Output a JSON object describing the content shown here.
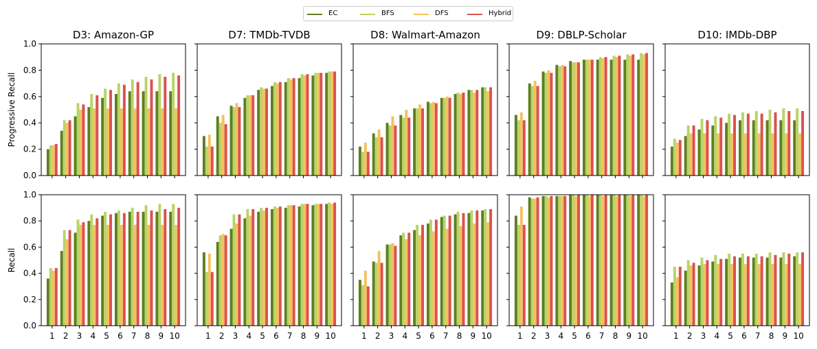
{
  "legend": {
    "items": [
      {
        "label": "EC",
        "color": "#5f7f1f"
      },
      {
        "label": "BFS",
        "color": "#b8d468"
      },
      {
        "label": "DFS",
        "color": "#f5c060"
      },
      {
        "label": "Hybrid",
        "color": "#d9534f"
      }
    ]
  },
  "row_labels": [
    "Progressive Recall",
    "Recall"
  ],
  "chart_data": [
    {
      "type": "bar",
      "title": "D3: Amazon-GP",
      "ylabel": "Progressive Recall",
      "ylim": [
        0,
        1.0
      ],
      "categories": [
        "1",
        "2",
        "3",
        "4",
        "5",
        "6",
        "7",
        "8",
        "9",
        "10"
      ],
      "series": [
        {
          "name": "EC",
          "values": [
            0.2,
            0.34,
            0.45,
            0.52,
            0.59,
            0.62,
            0.64,
            0.64,
            0.64,
            0.64
          ]
        },
        {
          "name": "BFS",
          "values": [
            0.23,
            0.42,
            0.55,
            0.62,
            0.66,
            0.7,
            0.73,
            0.75,
            0.77,
            0.78
          ]
        },
        {
          "name": "DFS",
          "values": [
            0.23,
            0.4,
            0.5,
            0.51,
            0.51,
            0.51,
            0.51,
            0.51,
            0.51,
            0.51
          ]
        },
        {
          "name": "Hybrid",
          "values": [
            0.24,
            0.42,
            0.54,
            0.61,
            0.65,
            0.69,
            0.71,
            0.73,
            0.75,
            0.76
          ]
        }
      ]
    },
    {
      "type": "bar",
      "title": "D7: TMDb-TVDB",
      "ylabel": "",
      "ylim": [
        0,
        1.0
      ],
      "categories": [
        "1",
        "2",
        "3",
        "4",
        "5",
        "6",
        "7",
        "8",
        "9",
        "10"
      ],
      "series": [
        {
          "name": "EC",
          "values": [
            0.3,
            0.45,
            0.53,
            0.59,
            0.65,
            0.68,
            0.71,
            0.74,
            0.76,
            0.78
          ]
        },
        {
          "name": "BFS",
          "values": [
            0.22,
            0.4,
            0.52,
            0.61,
            0.67,
            0.71,
            0.74,
            0.77,
            0.78,
            0.79
          ]
        },
        {
          "name": "DFS",
          "values": [
            0.31,
            0.46,
            0.55,
            0.61,
            0.66,
            0.7,
            0.73,
            0.76,
            0.78,
            0.79
          ]
        },
        {
          "name": "Hybrid",
          "values": [
            0.22,
            0.39,
            0.52,
            0.61,
            0.66,
            0.71,
            0.74,
            0.77,
            0.78,
            0.79
          ]
        }
      ]
    },
    {
      "type": "bar",
      "title": "D8: Walmart-Amazon",
      "ylabel": "",
      "ylim": [
        0,
        1.0
      ],
      "categories": [
        "1",
        "2",
        "3",
        "4",
        "5",
        "6",
        "7",
        "8",
        "9",
        "10"
      ],
      "series": [
        {
          "name": "EC",
          "values": [
            0.22,
            0.32,
            0.4,
            0.46,
            0.51,
            0.56,
            0.59,
            0.62,
            0.65,
            0.67
          ]
        },
        {
          "name": "BFS",
          "values": [
            0.18,
            0.29,
            0.38,
            0.44,
            0.51,
            0.55,
            0.59,
            0.63,
            0.65,
            0.67
          ]
        },
        {
          "name": "DFS",
          "values": [
            0.25,
            0.35,
            0.45,
            0.5,
            0.54,
            0.56,
            0.6,
            0.62,
            0.63,
            0.64
          ]
        },
        {
          "name": "Hybrid",
          "values": [
            0.18,
            0.29,
            0.38,
            0.44,
            0.51,
            0.55,
            0.59,
            0.63,
            0.65,
            0.67
          ]
        }
      ]
    },
    {
      "type": "bar",
      "title": "D9: DBLP-Scholar",
      "ylabel": "",
      "ylim": [
        0,
        1.0
      ],
      "categories": [
        "1",
        "2",
        "3",
        "4",
        "5",
        "6",
        "7",
        "8",
        "9",
        "10"
      ],
      "series": [
        {
          "name": "EC",
          "values": [
            0.46,
            0.7,
            0.79,
            0.84,
            0.87,
            0.88,
            0.88,
            0.88,
            0.88,
            0.88
          ]
        },
        {
          "name": "BFS",
          "values": [
            0.42,
            0.68,
            0.78,
            0.83,
            0.86,
            0.88,
            0.9,
            0.91,
            0.92,
            0.93
          ]
        },
        {
          "name": "DFS",
          "values": [
            0.48,
            0.72,
            0.8,
            0.84,
            0.86,
            0.88,
            0.89,
            0.9,
            0.91,
            0.92
          ]
        },
        {
          "name": "Hybrid",
          "values": [
            0.42,
            0.68,
            0.78,
            0.83,
            0.86,
            0.88,
            0.9,
            0.91,
            0.92,
            0.93
          ]
        }
      ]
    },
    {
      "type": "bar",
      "title": "D10: IMDb-DBP",
      "ylabel": "",
      "ylim": [
        0,
        1.0
      ],
      "categories": [
        "1",
        "2",
        "3",
        "4",
        "5",
        "6",
        "7",
        "8",
        "9",
        "10"
      ],
      "series": [
        {
          "name": "EC",
          "values": [
            0.22,
            0.3,
            0.35,
            0.38,
            0.4,
            0.42,
            0.42,
            0.42,
            0.42,
            0.42
          ]
        },
        {
          "name": "BFS",
          "values": [
            0.28,
            0.38,
            0.43,
            0.45,
            0.47,
            0.48,
            0.49,
            0.5,
            0.51,
            0.51
          ]
        },
        {
          "name": "DFS",
          "values": [
            0.25,
            0.32,
            0.32,
            0.32,
            0.32,
            0.32,
            0.32,
            0.32,
            0.32,
            0.32
          ]
        },
        {
          "name": "Hybrid",
          "values": [
            0.27,
            0.38,
            0.42,
            0.44,
            0.46,
            0.47,
            0.47,
            0.48,
            0.49,
            0.49
          ]
        }
      ]
    },
    {
      "type": "bar",
      "title": "",
      "ylabel": "Recall",
      "ylim": [
        0,
        1.0
      ],
      "categories": [
        "1",
        "2",
        "3",
        "4",
        "5",
        "6",
        "7",
        "8",
        "9",
        "10"
      ],
      "series": [
        {
          "name": "EC",
          "values": [
            0.36,
            0.57,
            0.71,
            0.8,
            0.84,
            0.86,
            0.87,
            0.87,
            0.87,
            0.87
          ]
        },
        {
          "name": "BFS",
          "values": [
            0.44,
            0.73,
            0.81,
            0.85,
            0.87,
            0.88,
            0.9,
            0.92,
            0.93,
            0.93
          ]
        },
        {
          "name": "DFS",
          "values": [
            0.42,
            0.66,
            0.77,
            0.77,
            0.77,
            0.77,
            0.77,
            0.77,
            0.77,
            0.77
          ]
        },
        {
          "name": "Hybrid",
          "values": [
            0.44,
            0.73,
            0.79,
            0.82,
            0.85,
            0.86,
            0.87,
            0.88,
            0.89,
            0.9
          ]
        }
      ]
    },
    {
      "type": "bar",
      "title": "",
      "ylabel": "",
      "ylim": [
        0,
        1.0
      ],
      "categories": [
        "1",
        "2",
        "3",
        "4",
        "5",
        "6",
        "7",
        "8",
        "9",
        "10"
      ],
      "series": [
        {
          "name": "EC",
          "values": [
            0.56,
            0.64,
            0.74,
            0.82,
            0.87,
            0.89,
            0.9,
            0.91,
            0.92,
            0.93
          ]
        },
        {
          "name": "BFS",
          "values": [
            0.41,
            0.69,
            0.85,
            0.89,
            0.9,
            0.91,
            0.92,
            0.93,
            0.93,
            0.94
          ]
        },
        {
          "name": "DFS",
          "values": [
            0.55,
            0.7,
            0.78,
            0.84,
            0.88,
            0.9,
            0.92,
            0.93,
            0.93,
            0.93
          ]
        },
        {
          "name": "Hybrid",
          "values": [
            0.41,
            0.69,
            0.85,
            0.89,
            0.9,
            0.91,
            0.92,
            0.93,
            0.93,
            0.94
          ]
        }
      ]
    },
    {
      "type": "bar",
      "title": "",
      "ylabel": "",
      "ylim": [
        0,
        1.0
      ],
      "categories": [
        "1",
        "2",
        "3",
        "4",
        "5",
        "6",
        "7",
        "8",
        "9",
        "10"
      ],
      "series": [
        {
          "name": "EC",
          "values": [
            0.35,
            0.49,
            0.62,
            0.69,
            0.73,
            0.78,
            0.83,
            0.85,
            0.86,
            0.88
          ]
        },
        {
          "name": "BFS",
          "values": [
            0.31,
            0.48,
            0.62,
            0.71,
            0.77,
            0.81,
            0.84,
            0.87,
            0.88,
            0.89
          ]
        },
        {
          "name": "DFS",
          "values": [
            0.42,
            0.57,
            0.63,
            0.66,
            0.69,
            0.72,
            0.74,
            0.76,
            0.78,
            0.79
          ]
        },
        {
          "name": "Hybrid",
          "values": [
            0.3,
            0.48,
            0.61,
            0.71,
            0.77,
            0.81,
            0.84,
            0.86,
            0.88,
            0.89
          ]
        }
      ]
    },
    {
      "type": "bar",
      "title": "",
      "ylabel": "",
      "ylim": [
        0,
        1.0
      ],
      "categories": [
        "1",
        "2",
        "3",
        "4",
        "5",
        "6",
        "7",
        "8",
        "9",
        "10"
      ],
      "series": [
        {
          "name": "EC",
          "values": [
            0.84,
            0.98,
            0.99,
            0.99,
            1.0,
            1.0,
            1.0,
            1.0,
            1.0,
            1.0
          ]
        },
        {
          "name": "BFS",
          "values": [
            0.77,
            0.97,
            0.99,
            0.99,
            1.0,
            1.0,
            1.0,
            1.0,
            1.0,
            1.0
          ]
        },
        {
          "name": "DFS",
          "values": [
            0.91,
            0.97,
            0.98,
            0.99,
            0.99,
            0.99,
            0.99,
            0.99,
            0.99,
            0.99
          ]
        },
        {
          "name": "Hybrid",
          "values": [
            0.77,
            0.98,
            0.99,
            0.99,
            1.0,
            1.0,
            1.0,
            1.0,
            1.0,
            1.0
          ]
        }
      ]
    },
    {
      "type": "bar",
      "title": "",
      "ylabel": "",
      "ylim": [
        0,
        1.0
      ],
      "categories": [
        "1",
        "2",
        "3",
        "4",
        "5",
        "6",
        "7",
        "8",
        "9",
        "10"
      ],
      "series": [
        {
          "name": "EC",
          "values": [
            0.33,
            0.42,
            0.46,
            0.49,
            0.51,
            0.52,
            0.52,
            0.52,
            0.52,
            0.53
          ]
        },
        {
          "name": "BFS",
          "values": [
            0.45,
            0.5,
            0.52,
            0.54,
            0.55,
            0.55,
            0.55,
            0.56,
            0.56,
            0.56
          ]
        },
        {
          "name": "DFS",
          "values": [
            0.37,
            0.46,
            0.47,
            0.47,
            0.47,
            0.47,
            0.47,
            0.47,
            0.47,
            0.47
          ]
        },
        {
          "name": "Hybrid",
          "values": [
            0.45,
            0.48,
            0.5,
            0.51,
            0.53,
            0.53,
            0.53,
            0.54,
            0.55,
            0.56
          ]
        }
      ]
    }
  ]
}
